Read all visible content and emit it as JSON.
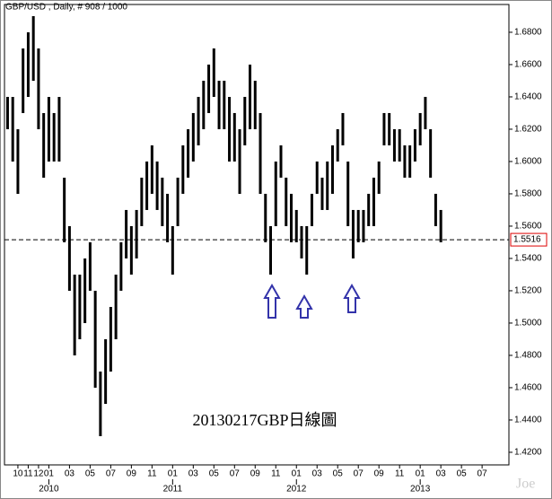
{
  "chart_data": {
    "type": "ohlc",
    "title": "GBP/USD , Daily, # 908 / 1000",
    "annotation": "20130217GBP日線圖",
    "watermark": "Joe",
    "color": "#000000",
    "x": [
      -1,
      -0.5,
      0,
      0.5,
      1,
      1.5,
      2,
      2.5,
      3,
      3.5,
      4,
      4.5,
      5,
      5.5,
      6,
      6.5,
      7,
      7.5,
      8,
      8.5,
      9,
      9.5,
      10,
      10.5,
      11,
      11.5,
      12,
      12.5,
      13,
      13.5,
      14,
      14.5,
      15,
      15.5,
      16,
      16.5,
      17,
      17.5,
      18,
      18.5,
      19,
      19.5,
      20,
      20.5,
      21,
      21.5,
      22,
      22.5,
      23,
      23.5,
      24,
      24.5,
      25,
      25.5,
      26,
      26.5,
      27,
      27.5,
      28,
      28.5,
      29,
      29.5,
      30,
      30.5,
      31,
      31.5,
      32,
      32.5,
      33,
      33.5,
      34,
      34.5,
      35,
      35.5,
      36,
      36.5,
      37,
      37.5,
      38,
      38.5,
      39,
      39.5,
      40,
      40.5,
      41
    ],
    "low": [
      1.62,
      1.6,
      1.58,
      1.63,
      1.64,
      1.65,
      1.62,
      1.59,
      1.6,
      1.6,
      1.6,
      1.55,
      1.52,
      1.48,
      1.49,
      1.5,
      1.52,
      1.46,
      1.43,
      1.45,
      1.47,
      1.49,
      1.52,
      1.54,
      1.53,
      1.54,
      1.56,
      1.57,
      1.58,
      1.57,
      1.56,
      1.55,
      1.53,
      1.56,
      1.58,
      1.59,
      1.6,
      1.61,
      1.62,
      1.63,
      1.64,
      1.62,
      1.62,
      1.6,
      1.6,
      1.58,
      1.61,
      1.62,
      1.62,
      1.58,
      1.55,
      1.53,
      1.56,
      1.59,
      1.56,
      1.55,
      1.55,
      1.54,
      1.53,
      1.56,
      1.58,
      1.57,
      1.57,
      1.58,
      1.6,
      1.61,
      1.56,
      1.54,
      1.55,
      1.55,
      1.56,
      1.56,
      1.58,
      1.61,
      1.61,
      1.6,
      1.6,
      1.59,
      1.59,
      1.6,
      1.61,
      1.62,
      1.59,
      1.56,
      1.55
    ],
    "high": [
      1.64,
      1.64,
      1.62,
      1.67,
      1.68,
      1.69,
      1.67,
      1.63,
      1.64,
      1.63,
      1.64,
      1.59,
      1.56,
      1.53,
      1.53,
      1.54,
      1.55,
      1.52,
      1.47,
      1.49,
      1.51,
      1.53,
      1.55,
      1.57,
      1.56,
      1.57,
      1.59,
      1.6,
      1.61,
      1.6,
      1.59,
      1.58,
      1.56,
      1.59,
      1.61,
      1.62,
      1.63,
      1.64,
      1.65,
      1.66,
      1.67,
      1.65,
      1.65,
      1.64,
      1.63,
      1.62,
      1.64,
      1.66,
      1.65,
      1.63,
      1.58,
      1.56,
      1.6,
      1.61,
      1.59,
      1.58,
      1.57,
      1.56,
      1.56,
      1.58,
      1.6,
      1.59,
      1.6,
      1.61,
      1.62,
      1.63,
      1.6,
      1.57,
      1.57,
      1.57,
      1.58,
      1.59,
      1.6,
      1.63,
      1.63,
      1.62,
      1.62,
      1.61,
      1.61,
      1.62,
      1.63,
      1.64,
      1.62,
      1.58,
      1.57
    ],
    "last_price": 1.5516,
    "ylim": [
      1.4122,
      1.6972
    ],
    "yticks": [
      {
        "value": 1.42,
        "label": "1.4200"
      },
      {
        "value": 1.44,
        "label": "1.4400"
      },
      {
        "value": 1.46,
        "label": "1.4600"
      },
      {
        "value": 1.48,
        "label": "1.4800"
      },
      {
        "value": 1.5,
        "label": "1.5000"
      },
      {
        "value": 1.52,
        "label": "1.5200"
      },
      {
        "value": 1.54,
        "label": "1.5400"
      },
      {
        "value": 1.56,
        "label": "1.5600"
      },
      {
        "value": 1.58,
        "label": "1.5800"
      },
      {
        "value": 1.6,
        "label": "1.6000"
      },
      {
        "value": 1.62,
        "label": "1.6200"
      },
      {
        "value": 1.64,
        "label": "1.6400"
      },
      {
        "value": 1.66,
        "label": "1.6600"
      },
      {
        "value": 1.68,
        "label": "1.6800"
      }
    ],
    "xlim": [
      -1.3,
      47.6
    ],
    "xticks": [
      {
        "value": 0,
        "label": "10"
      },
      {
        "value": 1,
        "label": "11"
      },
      {
        "value": 2,
        "label": "12"
      },
      {
        "value": 3,
        "label": "01"
      },
      {
        "value": 5,
        "label": "03"
      },
      {
        "value": 7,
        "label": "05"
      },
      {
        "value": 9,
        "label": "07"
      },
      {
        "value": 11,
        "label": "09"
      },
      {
        "value": 13,
        "label": "11"
      },
      {
        "value": 15,
        "label": "01"
      },
      {
        "value": 17,
        "label": "03"
      },
      {
        "value": 19,
        "label": "05"
      },
      {
        "value": 21,
        "label": "07"
      },
      {
        "value": 23,
        "label": "09"
      },
      {
        "value": 25,
        "label": "11"
      },
      {
        "value": 27,
        "label": "01"
      },
      {
        "value": 29,
        "label": "03"
      },
      {
        "value": 31,
        "label": "05"
      },
      {
        "value": 33,
        "label": "07"
      },
      {
        "value": 35,
        "label": "09"
      },
      {
        "value": 37,
        "label": "11"
      },
      {
        "value": 39,
        "label": "01"
      },
      {
        "value": 41,
        "label": "03"
      },
      {
        "value": 43,
        "label": "05"
      },
      {
        "value": 45,
        "label": "07"
      }
    ],
    "year_ticks": [
      {
        "value": 3,
        "label": "2010"
      },
      {
        "value": 15,
        "label": "2011"
      },
      {
        "value": 27,
        "label": "2012"
      },
      {
        "value": 39,
        "label": "2013"
      }
    ]
  }
}
